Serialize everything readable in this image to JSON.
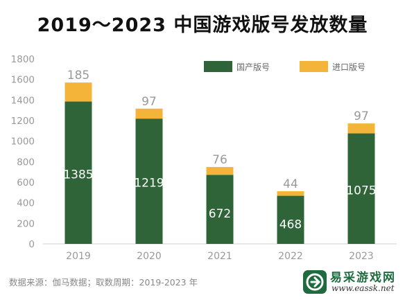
{
  "title": "2019～2023 中国游戏版号发放数量",
  "source": "数据来源：伽马数据；取数周期：2019-2023 年",
  "watermark": {
    "name": "易采游戏网",
    "url": "www.eassk.net"
  },
  "colors": {
    "domestic": "#2e6437",
    "imported": "#f4b439",
    "axis_text": "#999999",
    "grid": "#e6e6e6"
  },
  "chart_data": {
    "type": "bar",
    "stacked": true,
    "categories": [
      "2019",
      "2020",
      "2021",
      "2022",
      "2023"
    ],
    "series": [
      {
        "name": "国产版号",
        "values": [
          1385,
          1219,
          672,
          468,
          1075
        ]
      },
      {
        "name": "进口版号",
        "values": [
          185,
          97,
          76,
          44,
          97
        ]
      }
    ],
    "ylim": [
      0,
      1800
    ],
    "yticks": [
      0,
      200,
      400,
      600,
      800,
      1000,
      1200,
      1400,
      1600,
      1800
    ],
    "legend_position": "top-right",
    "grid": false
  }
}
